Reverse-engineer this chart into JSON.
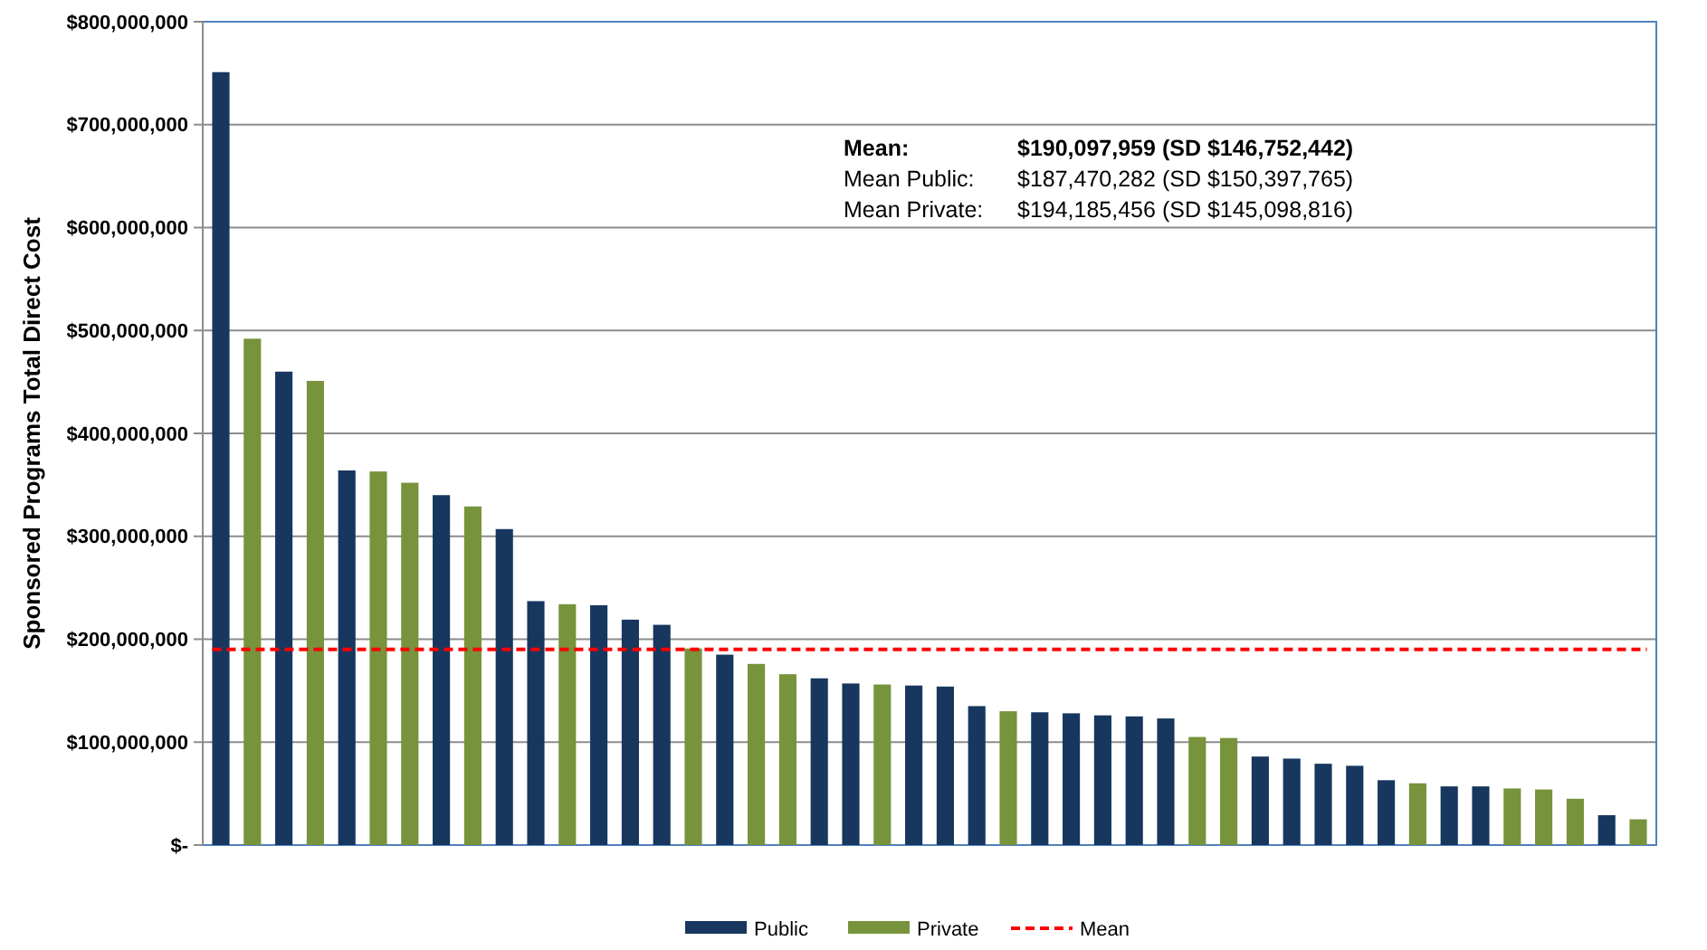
{
  "chart_data": {
    "type": "bar",
    "ylabel": "Sponsored Programs Total Direct Cost",
    "categories": [
      null,
      null,
      null,
      null,
      null,
      null,
      null,
      null,
      null,
      null,
      null,
      null,
      null,
      null,
      null,
      null,
      null,
      null,
      null,
      null,
      null,
      null,
      null,
      null,
      null,
      null,
      null,
      null,
      null,
      null,
      null,
      null,
      null,
      null,
      null,
      null,
      null,
      null,
      null,
      null,
      null,
      null,
      null,
      null,
      null,
      null
    ],
    "series": [
      {
        "name": "Public",
        "color": "#17375e",
        "values": [
          751000000,
          null,
          460000000,
          null,
          364000000,
          null,
          null,
          340000000,
          null,
          307000000,
          237000000,
          null,
          233000000,
          219000000,
          214000000,
          null,
          185000000,
          null,
          null,
          162000000,
          157000000,
          null,
          155000000,
          154000000,
          135000000,
          null,
          129000000,
          128000000,
          126000000,
          125000000,
          123000000,
          null,
          null,
          86000000,
          84000000,
          79000000,
          77000000,
          63000000,
          null,
          57000000,
          57000000,
          null,
          null,
          null,
          29000000,
          null
        ]
      },
      {
        "name": "Private",
        "color": "#77933c",
        "values": [
          null,
          492000000,
          null,
          451000000,
          null,
          363000000,
          352000000,
          null,
          329000000,
          null,
          null,
          234000000,
          null,
          null,
          null,
          191000000,
          null,
          176000000,
          166000000,
          null,
          null,
          156000000,
          null,
          null,
          null,
          130000000,
          null,
          null,
          null,
          null,
          null,
          105000000,
          104000000,
          null,
          null,
          null,
          null,
          null,
          60000000,
          null,
          null,
          55000000,
          54000000,
          45000000,
          null,
          25000000
        ]
      }
    ],
    "ylim": [
      0,
      800000000
    ],
    "yticks": [
      {
        "value": 0,
        "label": "$-"
      },
      {
        "value": 100000000,
        "label": "$100,000,000"
      },
      {
        "value": 200000000,
        "label": "$200,000,000"
      },
      {
        "value": 300000000,
        "label": "$300,000,000"
      },
      {
        "value": 400000000,
        "label": "$400,000,000"
      },
      {
        "value": 500000000,
        "label": "$500,000,000"
      },
      {
        "value": 600000000,
        "label": "$600,000,000"
      },
      {
        "value": 700000000,
        "label": "$700,000,000"
      },
      {
        "value": 800000000,
        "label": "$800,000,000"
      }
    ],
    "grid": "y",
    "legend": "bottom",
    "ref_lines": [
      {
        "axis": "y",
        "value": 190097959,
        "label": "Mean",
        "color": "#ff0000",
        "line_style": "dashed"
      }
    ],
    "annotations": [
      "Mean: $190,097,959 (SD $146,752,442)",
      "Mean Public: $187,470,282 (SD $150,397,765)",
      "Mean Private: $194,185,456 (SD $145,098,816)"
    ]
  }
}
